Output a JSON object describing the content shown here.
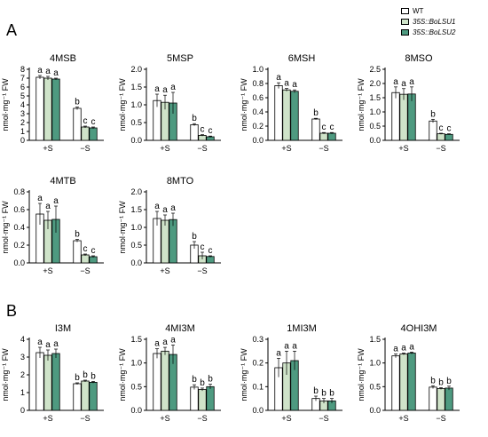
{
  "figure": {
    "panel_labels": [
      "A",
      "B"
    ],
    "legend": [
      {
        "label": "WT",
        "color": "#ffffff"
      },
      {
        "label": "35S::BoLSU1",
        "color": "#cfe3c9"
      },
      {
        "label": "35S::BoLSU2",
        "color": "#4e9a80"
      }
    ]
  },
  "chart_data": [
    {
      "type": "bar",
      "title": "4MSB",
      "ylabel": "nmol·mg⁻¹ FW",
      "categories": [
        "+S",
        "−S"
      ],
      "ylim": [
        0,
        8
      ],
      "yticks": [
        0,
        1,
        2,
        3,
        4,
        5,
        6,
        7,
        8
      ],
      "ytick_labels": [
        "0",
        "1",
        "2",
        "3",
        "4",
        "5",
        "6",
        "7",
        "8"
      ],
      "series": [
        {
          "name": "WT",
          "values": [
            7.1,
            3.6
          ],
          "errors": [
            0.2,
            0.15
          ]
        },
        {
          "name": "35S::BoLSU1",
          "values": [
            7.0,
            1.5
          ],
          "errors": [
            0.2,
            0.1
          ]
        },
        {
          "name": "35S::BoLSU2",
          "values": [
            6.9,
            1.4
          ],
          "errors": [
            0.1,
            0.1
          ]
        }
      ],
      "letters": [
        [
          "a",
          "b"
        ],
        [
          "a",
          "c"
        ],
        [
          "a",
          "c"
        ]
      ]
    },
    {
      "type": "bar",
      "title": "5MSP",
      "ylabel": "nmol·mg⁻¹ FW",
      "categories": [
        "+S",
        "−S"
      ],
      "ylim": [
        0,
        2.0
      ],
      "yticks": [
        0,
        0.5,
        1.0,
        1.5,
        2.0
      ],
      "ytick_labels": [
        "0.0",
        "0.5",
        "1.0",
        "1.5",
        "2.0"
      ],
      "series": [
        {
          "name": "WT",
          "values": [
            1.12,
            0.44
          ],
          "errors": [
            0.18,
            0.03
          ]
        },
        {
          "name": "35S::BoLSU1",
          "values": [
            1.07,
            0.14
          ],
          "errors": [
            0.2,
            0.02
          ]
        },
        {
          "name": "35S::BoLSU2",
          "values": [
            1.05,
            0.1
          ],
          "errors": [
            0.3,
            0.02
          ]
        }
      ],
      "letters": [
        [
          "a",
          "b"
        ],
        [
          "a",
          "c"
        ],
        [
          "a",
          "c"
        ]
      ]
    },
    {
      "type": "bar",
      "title": "6MSH",
      "ylabel": "nmol·mg⁻¹ FW",
      "categories": [
        "+S",
        "−S"
      ],
      "ylim": [
        0,
        1.0
      ],
      "yticks": [
        0,
        0.2,
        0.4,
        0.6,
        0.8,
        1.0
      ],
      "ytick_labels": [
        "0.0",
        "0.2",
        "0.4",
        "0.6",
        "0.8",
        "1.0"
      ],
      "series": [
        {
          "name": "WT",
          "values": [
            0.77,
            0.3
          ],
          "errors": [
            0.04,
            0.01
          ]
        },
        {
          "name": "35S::BoLSU1",
          "values": [
            0.71,
            0.1
          ],
          "errors": [
            0.02,
            0.01
          ]
        },
        {
          "name": "35S::BoLSU2",
          "values": [
            0.69,
            0.1
          ],
          "errors": [
            0.02,
            0.01
          ]
        }
      ],
      "letters": [
        [
          "a",
          "b"
        ],
        [
          "a",
          "c"
        ],
        [
          "a",
          "c"
        ]
      ]
    },
    {
      "type": "bar",
      "title": "8MSO",
      "ylabel": "nmol·mg⁻¹ FW",
      "categories": [
        "+S",
        "−S"
      ],
      "ylim": [
        0,
        2.5
      ],
      "yticks": [
        0,
        0.5,
        1.0,
        1.5,
        2.0,
        2.5
      ],
      "ytick_labels": [
        "0.0",
        "0.5",
        "1.0",
        "1.5",
        "2.0",
        "2.5"
      ],
      "series": [
        {
          "name": "WT",
          "values": [
            1.68,
            0.68
          ],
          "errors": [
            0.2,
            0.06
          ]
        },
        {
          "name": "35S::BoLSU1",
          "values": [
            1.62,
            0.23
          ],
          "errors": [
            0.2,
            0.02
          ]
        },
        {
          "name": "35S::BoLSU2",
          "values": [
            1.63,
            0.21
          ],
          "errors": [
            0.25,
            0.02
          ]
        }
      ],
      "letters": [
        [
          "a",
          "b"
        ],
        [
          "a",
          "c"
        ],
        [
          "a",
          "c"
        ]
      ]
    },
    {
      "type": "bar",
      "title": "4MTB",
      "ylabel": "nmol·mg⁻¹ FW",
      "categories": [
        "+S",
        "−S"
      ],
      "ylim": [
        0,
        0.8
      ],
      "yticks": [
        0,
        0.2,
        0.4,
        0.6,
        0.8
      ],
      "ytick_labels": [
        "0.0",
        "0.2",
        "0.4",
        "0.6",
        "0.8"
      ],
      "series": [
        {
          "name": "WT",
          "values": [
            0.55,
            0.25
          ],
          "errors": [
            0.12,
            0.015
          ]
        },
        {
          "name": "35S::BoLSU1",
          "values": [
            0.48,
            0.09
          ],
          "errors": [
            0.1,
            0.01
          ]
        },
        {
          "name": "35S::BoLSU2",
          "values": [
            0.49,
            0.07
          ],
          "errors": [
            0.15,
            0.01
          ]
        }
      ],
      "letters": [
        [
          "a",
          "b"
        ],
        [
          "a",
          "c"
        ],
        [
          "a",
          "c"
        ]
      ]
    },
    {
      "type": "bar",
      "title": "8MTO",
      "ylabel": "nmol·mg⁻¹ FW",
      "categories": [
        "+S",
        "−S"
      ],
      "ylim": [
        0,
        2.0
      ],
      "yticks": [
        0,
        0.5,
        1.0,
        1.5,
        2.0
      ],
      "ytick_labels": [
        "0.0",
        "0.5",
        "1.0",
        "1.5",
        "2.0"
      ],
      "series": [
        {
          "name": "WT",
          "values": [
            1.25,
            0.5
          ],
          "errors": [
            0.2,
            0.1
          ]
        },
        {
          "name": "35S::BoLSU1",
          "values": [
            1.2,
            0.2
          ],
          "errors": [
            0.15,
            0.1
          ]
        },
        {
          "name": "35S::BoLSU2",
          "values": [
            1.22,
            0.18
          ],
          "errors": [
            0.18,
            0.02
          ]
        }
      ],
      "letters": [
        [
          "a",
          "b"
        ],
        [
          "a",
          "c"
        ],
        [
          "a",
          "c"
        ]
      ]
    },
    {
      "type": "bar",
      "title": "I3M",
      "ylabel": "nmol·mg⁻¹ FW",
      "categories": [
        "+S",
        "−S"
      ],
      "ylim": [
        0,
        4
      ],
      "yticks": [
        0,
        1,
        2,
        3,
        4
      ],
      "ytick_labels": [
        "0",
        "1",
        "2",
        "3",
        "4"
      ],
      "series": [
        {
          "name": "WT",
          "values": [
            3.25,
            1.5
          ],
          "errors": [
            0.3,
            0.05
          ]
        },
        {
          "name": "35S::BoLSU1",
          "values": [
            3.1,
            1.65
          ],
          "errors": [
            0.3,
            0.05
          ]
        },
        {
          "name": "35S::BoLSU2",
          "values": [
            3.2,
            1.58
          ],
          "errors": [
            0.25,
            0.05
          ]
        }
      ],
      "letters": [
        [
          "a",
          "b"
        ],
        [
          "a",
          "b"
        ],
        [
          "a",
          "b"
        ]
      ]
    },
    {
      "type": "bar",
      "title": "4MI3M",
      "ylabel": "nmol·mg⁻¹ FW",
      "categories": [
        "+S",
        "−S"
      ],
      "ylim": [
        0,
        1.5
      ],
      "yticks": [
        0,
        0.5,
        1.0,
        1.5
      ],
      "ytick_labels": [
        "0.0",
        "0.5",
        "1.0",
        "1.5"
      ],
      "series": [
        {
          "name": "WT",
          "values": [
            1.2,
            0.49
          ],
          "errors": [
            0.1,
            0.05
          ]
        },
        {
          "name": "35S::BoLSU1",
          "values": [
            1.25,
            0.44
          ],
          "errors": [
            0.08,
            0.03
          ]
        },
        {
          "name": "35S::BoLSU2",
          "values": [
            1.18,
            0.5
          ],
          "errors": [
            0.2,
            0.05
          ]
        }
      ],
      "letters": [
        [
          "a",
          "b"
        ],
        [
          "a",
          "b"
        ],
        [
          "a",
          "b"
        ]
      ]
    },
    {
      "type": "bar",
      "title": "1MI3M",
      "ylabel": "nmol·mg⁻¹ FW",
      "categories": [
        "+S",
        "−S"
      ],
      "ylim": [
        0,
        0.3
      ],
      "yticks": [
        0,
        0.1,
        0.2,
        0.3
      ],
      "ytick_labels": [
        "0.0",
        "0.1",
        "0.2",
        "0.3"
      ],
      "series": [
        {
          "name": "WT",
          "values": [
            0.18,
            0.05
          ],
          "errors": [
            0.04,
            0.01
          ]
        },
        {
          "name": "35S::BoLSU1",
          "values": [
            0.2,
            0.04
          ],
          "errors": [
            0.05,
            0.01
          ]
        },
        {
          "name": "35S::BoLSU2",
          "values": [
            0.21,
            0.04
          ],
          "errors": [
            0.04,
            0.01
          ]
        }
      ],
      "letters": [
        [
          "a",
          "b"
        ],
        [
          "a",
          "b"
        ],
        [
          "a",
          "b"
        ]
      ]
    },
    {
      "type": "bar",
      "title": "4OHI3M",
      "ylabel": "nmol·mg⁻¹ FW",
      "categories": [
        "+S",
        "−S"
      ],
      "ylim": [
        0,
        1.5
      ],
      "yticks": [
        0,
        0.5,
        1.0,
        1.5
      ],
      "ytick_labels": [
        "0.0",
        "0.5",
        "1.0",
        "1.5"
      ],
      "series": [
        {
          "name": "WT",
          "values": [
            1.15,
            0.49
          ],
          "errors": [
            0.04,
            0.03
          ]
        },
        {
          "name": "35S::BoLSU1",
          "values": [
            1.19,
            0.46
          ],
          "errors": [
            0.02,
            0.02
          ]
        },
        {
          "name": "35S::BoLSU2",
          "values": [
            1.21,
            0.47
          ],
          "errors": [
            0.02,
            0.04
          ]
        }
      ],
      "letters": [
        [
          "a",
          "b"
        ],
        [
          "a",
          "b"
        ],
        [
          "a",
          "b"
        ]
      ]
    }
  ]
}
